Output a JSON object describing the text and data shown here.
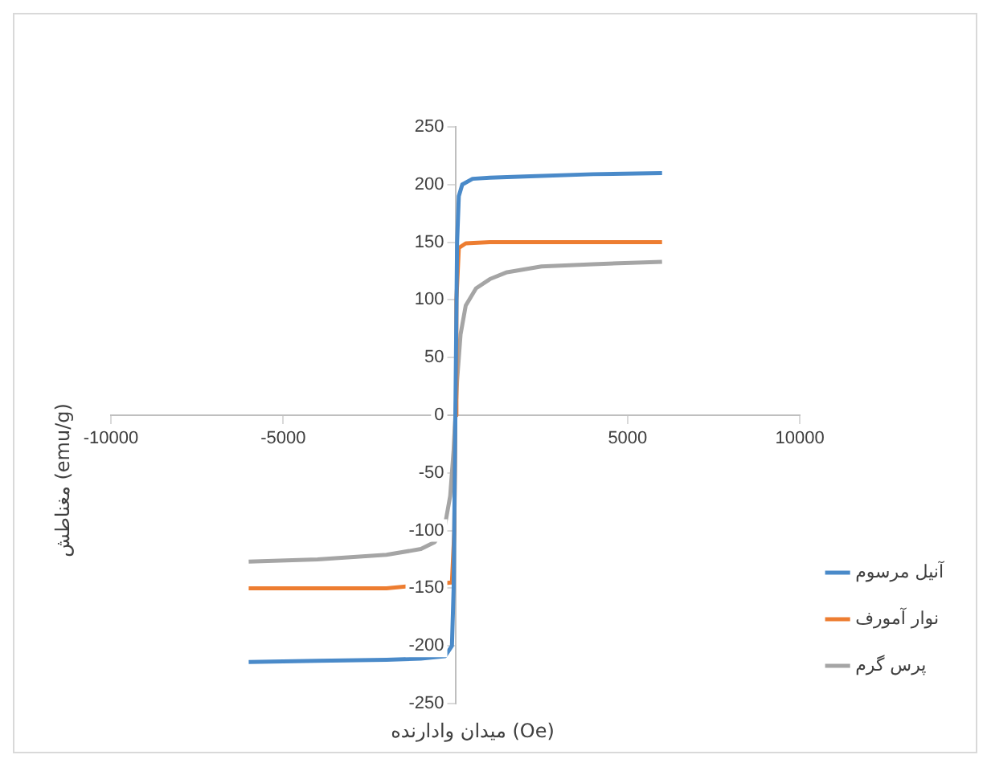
{
  "chart_data": {
    "type": "line",
    "xlabel": "میدان وادارنده (Oe)",
    "ylabel": "مغناطش (emu/g)",
    "xlim": [
      -10000,
      10000
    ],
    "xticks": [
      -10000,
      -5000,
      {
        "value": 0,
        "label": null
      },
      5000,
      10000
    ],
    "ylim": [
      -250,
      250
    ],
    "yticks": [
      -250,
      -200,
      -150,
      -100,
      -50,
      0,
      50,
      100,
      150,
      200,
      250
    ],
    "grid": false,
    "legend": "right",
    "marker": "none",
    "line_style": "solid",
    "series": [
      {
        "name": "آنیل مرسوم",
        "color": "#4a8ac9",
        "x": [
          -6000,
          -4000,
          -2000,
          -1000,
          -300,
          -100,
          -50,
          0,
          50,
          100,
          200,
          500,
          1000,
          2000,
          4000,
          6000
        ],
        "values": [
          -214,
          -213,
          -212,
          -211,
          -209,
          -200,
          -150,
          0,
          150,
          190,
          200,
          205,
          206,
          207,
          209,
          210
        ]
      },
      {
        "name": "نوار آمورف",
        "color": "#ed7d31",
        "x": [
          -6000,
          -2000,
          -100,
          -30,
          0,
          30,
          100,
          300,
          1000,
          3000,
          6000
        ],
        "values": [
          -150,
          -150,
          -145,
          -100,
          0,
          100,
          145,
          149,
          150,
          150,
          150
        ]
      },
      {
        "name": "پرس گرم",
        "color": "#a5a5a5",
        "x": [
          -6000,
          -4000,
          -2000,
          -1000,
          -600,
          -300,
          -150,
          -50,
          0,
          50,
          150,
          300,
          600,
          1000,
          1500,
          2500,
          4000,
          6000
        ],
        "values": [
          -127,
          -125,
          -121,
          -116,
          -110,
          -95,
          -70,
          -30,
          0,
          30,
          70,
          95,
          110,
          118,
          124,
          129,
          131,
          133
        ]
      }
    ]
  }
}
